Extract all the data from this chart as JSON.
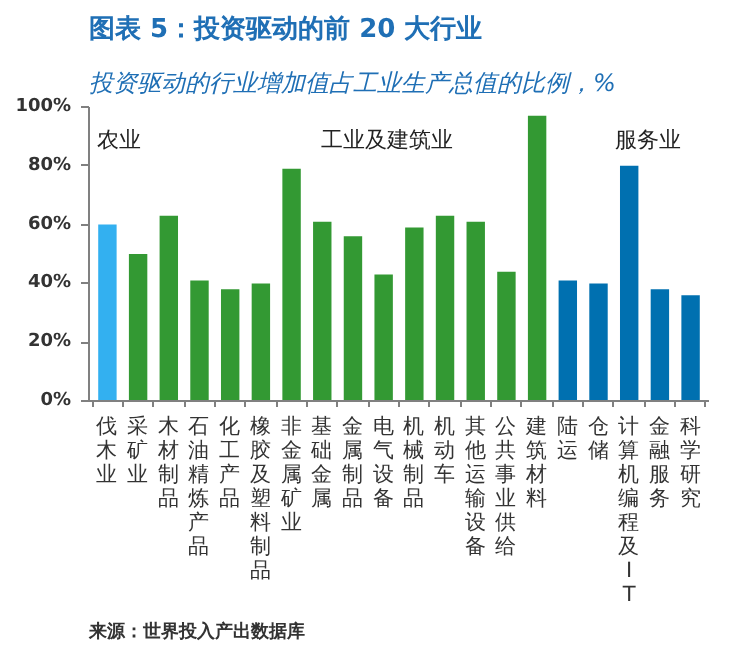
{
  "chart_data": {
    "type": "bar",
    "title": "图表 5：投资驱动的前 20 大行业",
    "subtitle": "投资驱动的行业增加值占工业生产总值的比例，%",
    "categories": [
      "伐木业",
      "采矿业",
      "木材制品",
      "石油精炼产品",
      "化工产品",
      "橡胶及塑料制品",
      "非金属矿业",
      "基础金属",
      "金属制品",
      "电气设备",
      "机械制品",
      "机动车",
      "其他运输设备",
      "公共事业供给",
      "建筑材料",
      "陆运",
      "仓储",
      "计算机编程及IT",
      "金融服务",
      "科学研究"
    ],
    "values": [
      60,
      50,
      63,
      41,
      38,
      40,
      79,
      61,
      56,
      43,
      59,
      63,
      61,
      44,
      97,
      41,
      40,
      80,
      38,
      36
    ],
    "colors": [
      "#33b0f0",
      "#339933",
      "#339933",
      "#339933",
      "#339933",
      "#339933",
      "#339933",
      "#339933",
      "#339933",
      "#339933",
      "#339933",
      "#339933",
      "#339933",
      "#339933",
      "#339933",
      "#0070b0",
      "#0070b0",
      "#0070b0",
      "#0070b0",
      "#0070b0"
    ],
    "ylim": [
      0,
      100
    ],
    "yticks": [
      {
        "value": 0,
        "label": "0%"
      },
      {
        "value": 20,
        "label": "20%"
      },
      {
        "value": 40,
        "label": "40%"
      },
      {
        "value": 60,
        "label": "60%"
      },
      {
        "value": 80,
        "label": "80%"
      },
      {
        "value": 100,
        "label": "100%"
      }
    ],
    "grid": false,
    "annotations": [
      "农业",
      "工业及建筑业",
      "服务业",
      "来源：世界投入产出数据库"
    ]
  }
}
